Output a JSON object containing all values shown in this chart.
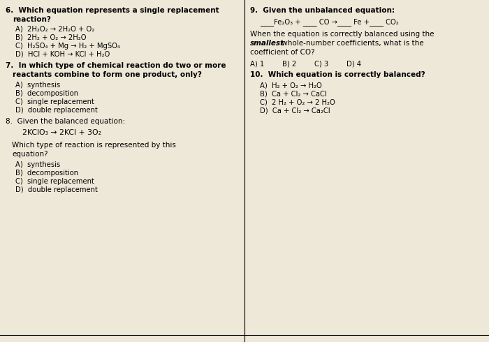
{
  "bg_color": "#ede8d8",
  "font_size_q": 7.5,
  "font_size_c": 7.2,
  "font_size_eq": 7.8,
  "left": {
    "q6_line1": "6.  Which equation represents a single replacement",
    "q6_line2": "    reaction?",
    "q6_choices": [
      "A)  2H₂O₂ → 2H₂O + O₂",
      "B)  2H₂ + O₂ → 2H₂O",
      "C)  H₂SO₄ + Mg → H₂ + MgSO₄",
      "D)  HCl + KOH → KCl + H₂O"
    ],
    "q7_line1": "7.  In which type of chemical reaction do two or more",
    "q7_line2": "    reactants combine to form one product, only?",
    "q7_choices": [
      "A)  synthesis",
      "B)  decomposition",
      "C)  single replacement",
      "D)  double replacement"
    ],
    "q8_line1": "8.  Given the balanced equation:",
    "q8_eq": "    2KClO₃ → 2KCl + 3O₂",
    "q8_line2": "    Which type of reaction is represented by this",
    "q8_line3": "    equation?",
    "q8_choices": [
      "A)  synthesis",
      "B)  decomposition",
      "C)  single replacement",
      "D)  double replacement"
    ]
  },
  "right": {
    "q9_line1": "9.  Given the unbalanced equation:",
    "q9_eq": "____Fe₂O₃ + ____ CO →____ Fe +____ CO₂",
    "q9_desc1": "When the equation is correctly balanced using the",
    "q9_desc2_bold": "smallest",
    "q9_desc2_rest": " whole-number coefficients, what is the",
    "q9_desc3": "coefficient of CO?",
    "q9_inline": [
      "A) 1",
      "B) 2",
      "C) 3",
      "D) 4"
    ],
    "q10_line1": "10.  Which equation is correctly balanced?",
    "q10_choices": [
      "A)  H₂ + O₂ → H₂O",
      "B)  Ca + Cl₂ → CaCl",
      "C)  2 H₂ + O₂ → 2 H₂O",
      "D)  Ca + Cl₂ → Ca₂Cl"
    ]
  }
}
